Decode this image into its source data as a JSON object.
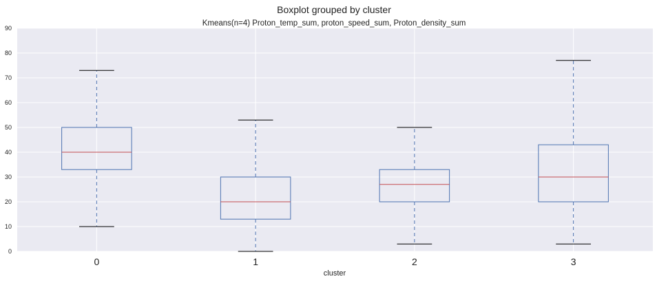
{
  "chart_data": {
    "type": "boxplot",
    "suptitle": "Boxplot grouped by cluster",
    "title": "Kmeans(n=4) Proton_temp_sum, proton_speed_sum, Proton_density_sum",
    "xlabel": "cluster",
    "ylabel": "",
    "ylim": [
      0,
      90
    ],
    "yticks": [
      0,
      10,
      20,
      30,
      40,
      50,
      60,
      70,
      80,
      90
    ],
    "grid": true,
    "categories": [
      "0",
      "1",
      "2",
      "3"
    ],
    "boxes": [
      {
        "category": "0",
        "whisker_low": 10,
        "q1": 33,
        "median": 40,
        "q3": 50,
        "whisker_high": 73
      },
      {
        "category": "1",
        "whisker_low": 0,
        "q1": 13,
        "median": 20,
        "q3": 30,
        "whisker_high": 53
      },
      {
        "category": "2",
        "whisker_low": 3,
        "q1": 20,
        "median": 27,
        "q3": 33,
        "whisker_high": 50
      },
      {
        "category": "3",
        "whisker_low": 3,
        "q1": 20,
        "median": 30,
        "q3": 43,
        "whisker_high": 77
      }
    ],
    "colors": {
      "background": "#eaeaf2",
      "grid": "#ffffff",
      "box": "#4c72b0",
      "median": "#c44e52",
      "cap": "#000000"
    }
  }
}
